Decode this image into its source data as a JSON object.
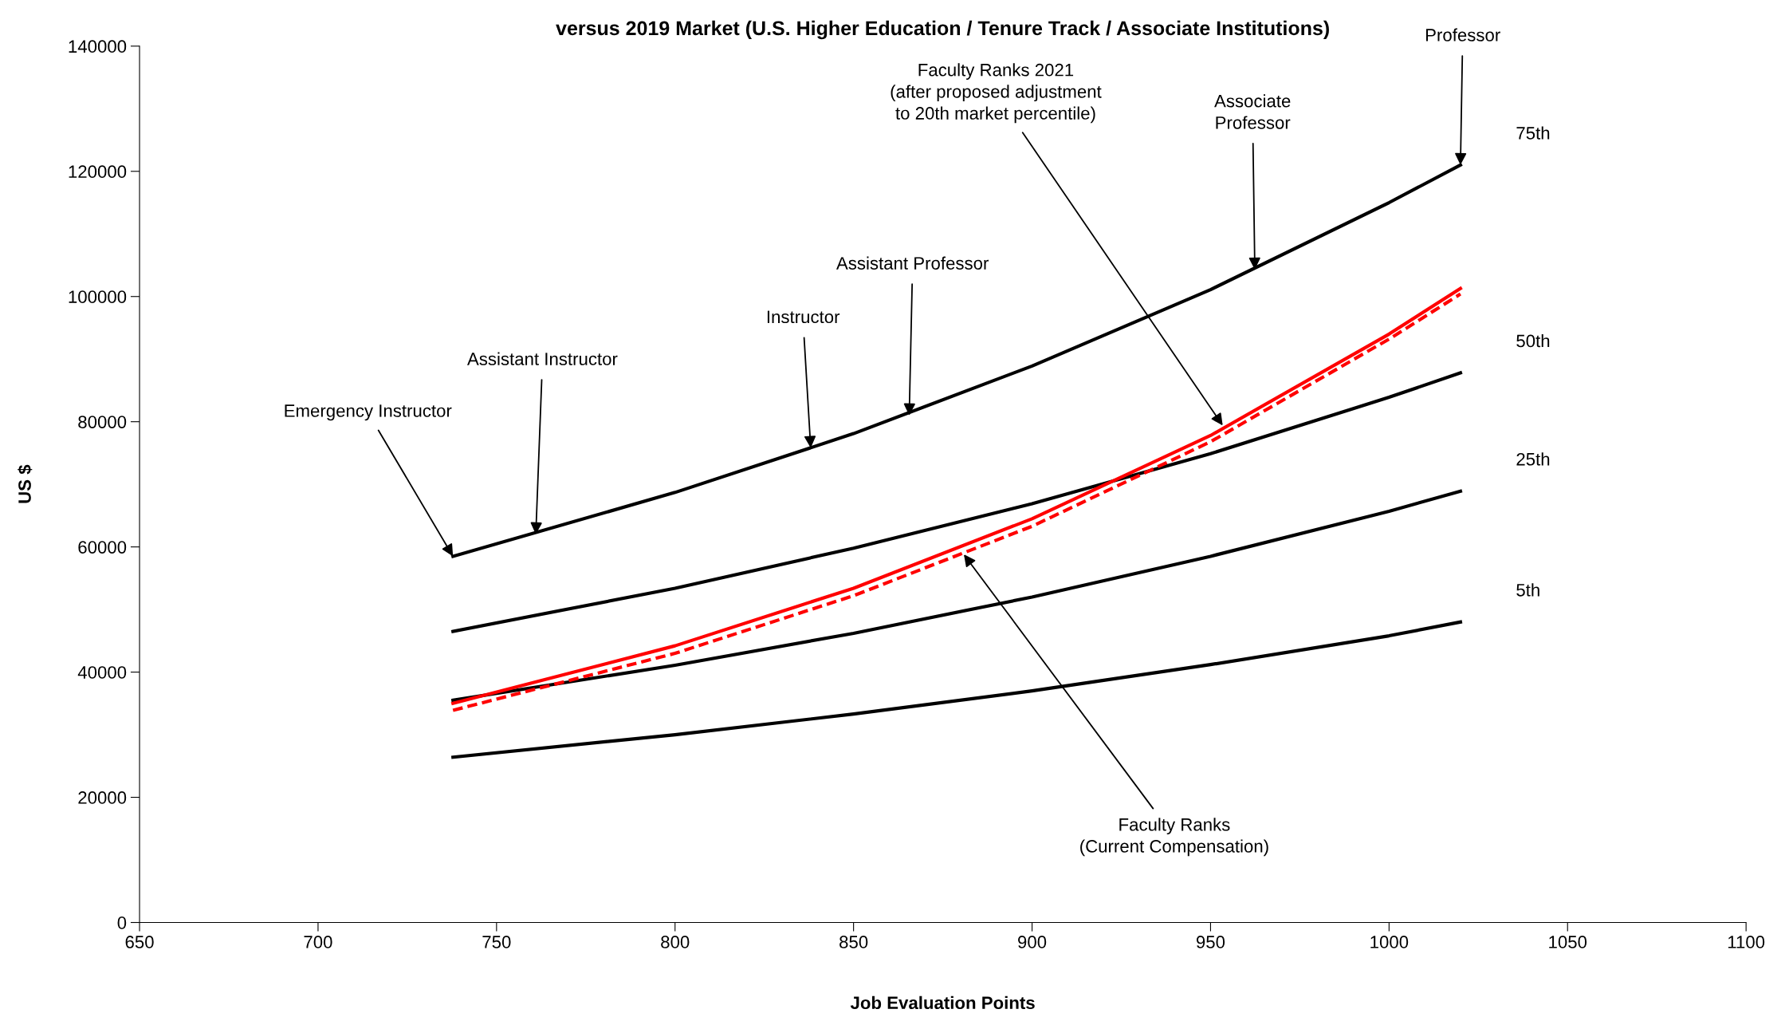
{
  "chart_data": {
    "type": "line",
    "title": "versus 2019 Market (U.S. Higher Education / Tenure Track / Associate Institutions)",
    "xlabel": "Job Evaluation Points",
    "ylabel": "US $",
    "xlim": [
      650,
      1100
    ],
    "xticks": [
      650,
      700,
      750,
      800,
      850,
      900,
      950,
      1000,
      1050,
      1100
    ],
    "ylim": [
      0,
      140000
    ],
    "yticks": [
      0,
      20000,
      40000,
      60000,
      80000,
      100000,
      120000,
      140000
    ],
    "grid": false,
    "legend": false,
    "marker": "none",
    "series": [
      {
        "name": "75th",
        "color": "#000000",
        "line_style": "solid",
        "x": [
          737.8,
          800,
          850,
          900,
          950,
          1000,
          1020
        ],
        "values": [
          58500,
          68700,
          78100,
          88900,
          101100,
          115000,
          121000
        ]
      },
      {
        "name": "50th",
        "color": "#000000",
        "line_style": "solid",
        "x": [
          737.8,
          800,
          850,
          900,
          950,
          1000,
          1020
        ],
        "values": [
          46500,
          53400,
          59800,
          66900,
          74900,
          83900,
          87800
        ]
      },
      {
        "name": "25th",
        "color": "#000000",
        "line_style": "solid",
        "x": [
          737.8,
          800,
          850,
          900,
          950,
          1000,
          1020
        ],
        "values": [
          35500,
          41100,
          46200,
          52000,
          58500,
          65700,
          68900
        ]
      },
      {
        "name": "5th",
        "color": "#000000",
        "line_style": "solid",
        "x": [
          737.8,
          800,
          850,
          900,
          950,
          1000,
          1020
        ],
        "values": [
          26400,
          30000,
          33300,
          37000,
          41200,
          45800,
          48000
        ]
      },
      {
        "color": "#ff0000",
        "line_style": "solid",
        "x": [
          737.8,
          800,
          850,
          900,
          950,
          1000,
          1020
        ],
        "values": [
          35000,
          44200,
          53400,
          64500,
          77800,
          94000,
          101300
        ]
      },
      {
        "color": "#ff0000",
        "line_style": "dashed",
        "x": [
          737.8,
          800,
          850,
          900,
          950,
          1000,
          1020
        ],
        "values": [
          33900,
          43000,
          52200,
          63300,
          76800,
          93200,
          100400
        ]
      }
    ],
    "annotations": [
      {
        "text": "Emergency Instructor",
        "x": 737.8,
        "y": 58500
      },
      {
        "text": "Assistant Instructor",
        "x": 761,
        "y": 62000
      },
      {
        "text": "Instructor",
        "x": 838,
        "y": 75800
      },
      {
        "text": "Assistant Professor",
        "x": 865.6,
        "y": 81000
      },
      {
        "text": "Associate\nProfessor",
        "x": 962.4,
        "y": 104300
      },
      {
        "text": "Professor",
        "x": 1020,
        "y": 121000
      },
      {
        "text": "Faculty Ranks 2021\n(after proposed adjustment\nto 20th market percentile)",
        "x": 953.4,
        "y": 79400
      },
      {
        "text": "Faculty Ranks\n(Current Compensation)",
        "x": 880.9,
        "y": 58800
      }
    ]
  }
}
